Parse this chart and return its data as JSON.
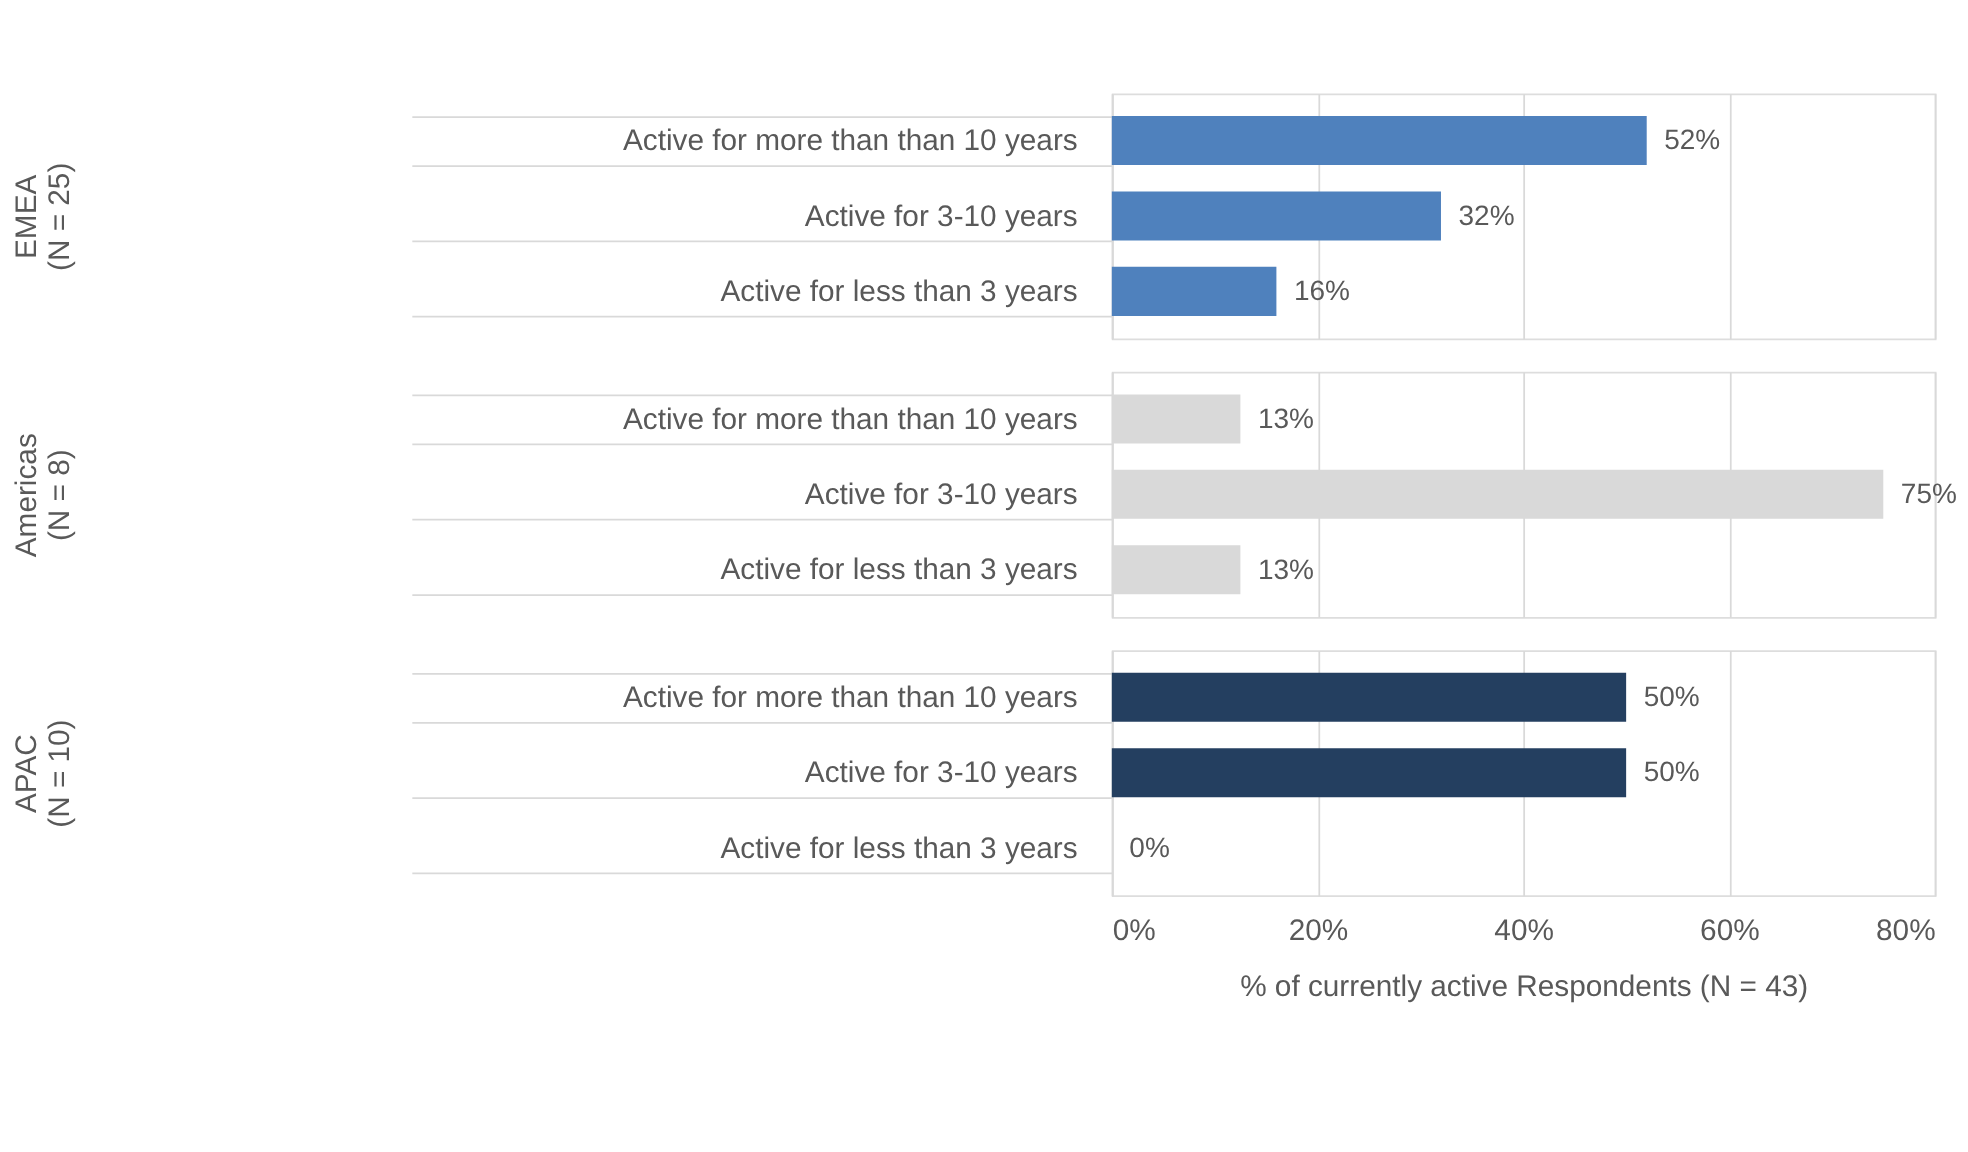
{
  "chart_data": [
    {
      "type": "bar",
      "orientation": "horizontal",
      "ylabel": "EMEA\n(N = 25)",
      "categories": [
        "Active for more than than 10 years",
        "Active for 3-10 years",
        "Active for less than 3 years"
      ],
      "values": [
        52,
        32,
        16
      ],
      "value_labels": [
        "52%",
        "32%",
        "16%"
      ],
      "color": "#4f81bd",
      "xlim": [
        0,
        80
      ],
      "xticks": [
        {
          "value": 0,
          "label": null
        },
        {
          "value": 20,
          "label": null
        },
        {
          "value": 40,
          "label": null
        },
        {
          "value": 60,
          "label": null
        },
        {
          "value": 80,
          "label": null
        }
      ],
      "grid": "x",
      "tick_labels": "y"
    },
    {
      "type": "bar",
      "orientation": "horizontal",
      "ylabel": "Americas\n(N = 8)",
      "categories": [
        "Active for more than than 10 years",
        "Active for 3-10 years",
        "Active for less than 3 years"
      ],
      "values": [
        12.5,
        75,
        12.5
      ],
      "value_labels": [
        "13%",
        "75%",
        "13%"
      ],
      "color": "#d9d9d9",
      "xlim": [
        0,
        80
      ],
      "xticks": [
        {
          "value": 0,
          "label": null
        },
        {
          "value": 20,
          "label": null
        },
        {
          "value": 40,
          "label": null
        },
        {
          "value": 60,
          "label": null
        },
        {
          "value": 80,
          "label": null
        }
      ],
      "grid": "x",
      "tick_labels": "y"
    },
    {
      "type": "bar",
      "orientation": "horizontal",
      "ylabel": "APAC\n(N = 10)",
      "xlabel": "% of currently active Respondents (N = 43)",
      "categories": [
        "Active for more than than 10 years",
        "Active for 3-10 years",
        "Active for less than 3 years"
      ],
      "values": [
        50,
        50,
        0
      ],
      "value_labels": [
        "50%",
        "50%",
        "0%"
      ],
      "color": "#243f60",
      "xlim": [
        0,
        80
      ],
      "xticks": [
        {
          "value": 0,
          "label": "0%"
        },
        {
          "value": 20,
          "label": "20%"
        },
        {
          "value": 40,
          "label": "40%"
        },
        {
          "value": 60,
          "label": "60%"
        },
        {
          "value": 80,
          "label": "80%"
        }
      ],
      "grid": "x"
    }
  ]
}
